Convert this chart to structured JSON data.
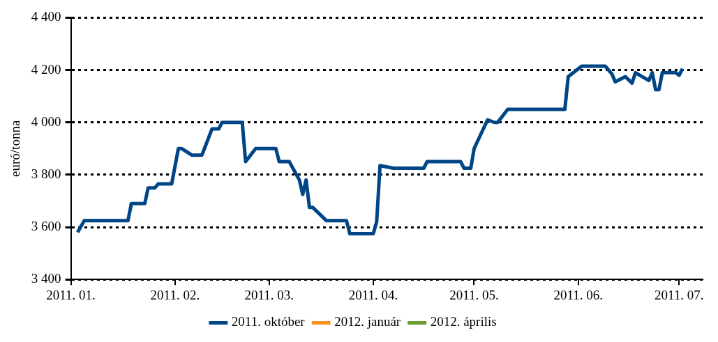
{
  "chart_data": {
    "type": "line",
    "ylabel": "euró/tonna",
    "xlim": [
      "2011-01-01",
      "2011-07-08"
    ],
    "xticks": [
      {
        "value": "2011-01-01",
        "label": "2011. 01."
      },
      {
        "value": "2011-02-01",
        "label": "2011. 02."
      },
      {
        "value": "2011-03-01",
        "label": "2011. 03."
      },
      {
        "value": "2011-04-01",
        "label": "2011. 04."
      },
      {
        "value": "2011-05-01",
        "label": "2011. 05."
      },
      {
        "value": "2011-06-01",
        "label": "2011. 06."
      },
      {
        "value": "2011-07-01",
        "label": "2011. 07."
      }
    ],
    "ylim": [
      3400,
      4400
    ],
    "yticks": [
      {
        "value": 3400,
        "label": "3 400"
      },
      {
        "value": 3600,
        "label": "3 600"
      },
      {
        "value": 3800,
        "label": "3 800"
      },
      {
        "value": 4000,
        "label": "4 000"
      },
      {
        "value": 4200,
        "label": "4 200"
      },
      {
        "value": 4400,
        "label": "4 400"
      }
    ],
    "grid": "y",
    "legend": "bottom",
    "line_style": "solid",
    "marker": "none",
    "series": [
      {
        "name": "2011. október",
        "color": "#004586",
        "x": [
          "2011-01-03",
          "2011-01-05",
          "2011-01-18",
          "2011-01-19",
          "2011-01-23",
          "2011-01-24",
          "2011-01-26",
          "2011-01-27",
          "2011-01-31",
          "2011-02-02",
          "2011-02-03",
          "2011-02-06",
          "2011-02-09",
          "2011-02-12",
          "2011-02-14",
          "2011-02-15",
          "2011-02-21",
          "2011-02-22",
          "2011-02-25",
          "2011-03-03",
          "2011-03-04",
          "2011-03-07",
          "2011-03-10",
          "2011-03-11",
          "2011-03-12",
          "2011-03-13",
          "2011-03-14",
          "2011-03-18",
          "2011-03-24",
          "2011-03-25",
          "2011-04-01",
          "2011-04-02",
          "2011-04-03",
          "2011-04-07",
          "2011-04-16",
          "2011-04-17",
          "2011-04-27",
          "2011-04-28",
          "2011-04-30",
          "2011-05-01",
          "2011-05-05",
          "2011-05-07",
          "2011-05-08",
          "2011-05-11",
          "2011-05-28",
          "2011-05-29",
          "2011-06-02",
          "2011-06-09",
          "2011-06-11",
          "2011-06-12",
          "2011-06-15",
          "2011-06-17",
          "2011-06-18",
          "2011-06-22",
          "2011-06-23",
          "2011-06-24",
          "2011-06-25",
          "2011-06-26",
          "2011-06-30",
          "2011-07-01",
          "2011-07-02"
        ],
        "values": [
          3580,
          3625,
          3625,
          3690,
          3690,
          3750,
          3750,
          3765,
          3765,
          3900,
          3900,
          3875,
          3875,
          3975,
          3975,
          4000,
          4000,
          3850,
          3900,
          3900,
          3850,
          3850,
          3780,
          3725,
          3780,
          3675,
          3675,
          3625,
          3625,
          3575,
          3575,
          3620,
          3835,
          3825,
          3825,
          3850,
          3850,
          3825,
          3825,
          3900,
          4010,
          4000,
          4000,
          4050,
          4050,
          4175,
          4215,
          4215,
          4185,
          4155,
          4175,
          4150,
          4190,
          4160,
          4190,
          4125,
          4125,
          4190,
          4190,
          4180,
          4205
        ]
      },
      {
        "name": "2012. január",
        "color": "#f7941d"
      },
      {
        "name": "2012. április",
        "color": "#6a9e2f"
      }
    ]
  }
}
